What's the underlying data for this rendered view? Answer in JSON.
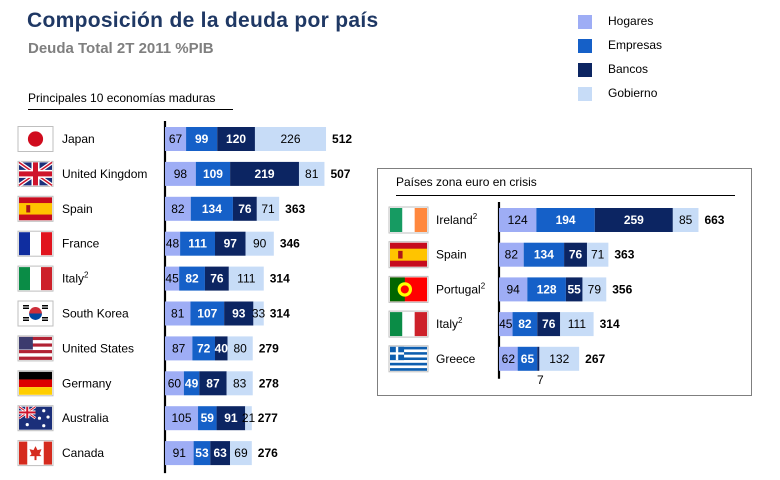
{
  "title": "Composición  de la deuda por país",
  "subtitle": "Deuda Total 2T 2011 %PIB",
  "colors": {
    "Hogares": "#9eadf5",
    "Empresas": "#1560c8",
    "Bancos": "#0c2562",
    "Gobierno": "#c7dcf7",
    "title": "#1f3864"
  },
  "legend": [
    "Hogares",
    "Empresas",
    "Bancos",
    "Gobierno"
  ],
  "chart_data": [
    {
      "type": "bar",
      "orientation": "horizontal",
      "stacked": true,
      "title": "Principales 10 economías maduras",
      "series_order": [
        "Hogares",
        "Empresas",
        "Bancos",
        "Gobierno"
      ],
      "rows": [
        {
          "country": "Japan",
          "flag": "japan-flag",
          "values": [
            67,
            99,
            120,
            226
          ],
          "total": 512
        },
        {
          "country": "United Kingdom",
          "flag": "uk-flag",
          "values": [
            98,
            109,
            219,
            81
          ],
          "total": 507
        },
        {
          "country": "Spain",
          "flag": "spain-flag",
          "values": [
            82,
            134,
            76,
            71
          ],
          "total": 363
        },
        {
          "country": "France",
          "flag": "france-flag",
          "values": [
            48,
            111,
            97,
            90
          ],
          "total": 346
        },
        {
          "country": "Italy",
          "sup": "2",
          "flag": "italy-flag",
          "values": [
            45,
            82,
            76,
            111
          ],
          "total": 314
        },
        {
          "country": "South Korea",
          "flag": "south-korea-flag",
          "values": [
            81,
            107,
            93,
            33
          ],
          "total": 314
        },
        {
          "country": "United States",
          "flag": "us-flag",
          "values": [
            87,
            72,
            40,
            80
          ],
          "total": 279
        },
        {
          "country": "Germany",
          "flag": "germany-flag",
          "values": [
            60,
            49,
            87,
            83
          ],
          "total": 278
        },
        {
          "country": "Australia",
          "flag": "australia-flag",
          "values": [
            105,
            59,
            91,
            21
          ],
          "total": 277
        },
        {
          "country": "Canada",
          "flag": "canada-flag",
          "values": [
            91,
            53,
            63,
            69
          ],
          "total": 276
        }
      ]
    },
    {
      "type": "bar",
      "orientation": "horizontal",
      "stacked": true,
      "title": "Países zona euro en crisis",
      "series_order": [
        "Hogares",
        "Empresas",
        "Bancos",
        "Gobierno"
      ],
      "rows": [
        {
          "country": "Ireland",
          "sup": "2",
          "flag": "ireland-flag",
          "values": [
            124,
            194,
            259,
            85
          ],
          "total": 663
        },
        {
          "country": "Spain",
          "flag": "spain-flag",
          "values": [
            82,
            134,
            76,
            71
          ],
          "total": 363
        },
        {
          "country": "Portugal",
          "sup": "2",
          "flag": "portugal-flag",
          "values": [
            94,
            128,
            55,
            79
          ],
          "total": 356
        },
        {
          "country": "Italy",
          "sup": "2",
          "flag": "italy-flag",
          "values": [
            45,
            82,
            76,
            111
          ],
          "total": 314
        },
        {
          "country": "Greece",
          "flag": "greece-flag",
          "values": [
            62,
            65,
            7,
            132
          ],
          "total": 267,
          "outside_label_index": 2
        }
      ]
    }
  ]
}
